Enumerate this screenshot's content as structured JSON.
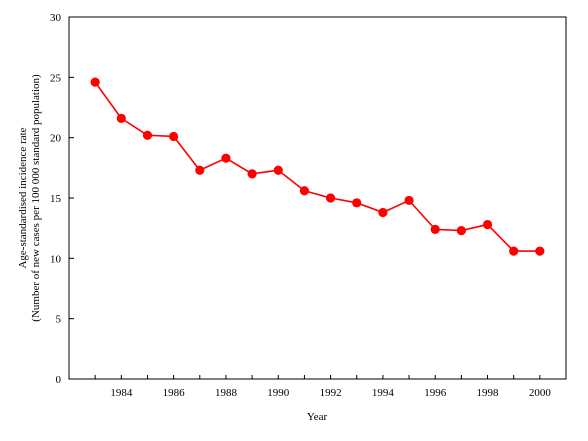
{
  "chart_data": {
    "type": "line",
    "xlabel": "Year",
    "ylabel_line1": "Age-standardised incidence rate",
    "ylabel_line2": "(Number of new cases per 100 000 standard population)",
    "xlim": [
      1982,
      2001
    ],
    "ylim": [
      0,
      30
    ],
    "x_ticks": [
      1984,
      1986,
      1988,
      1990,
      1992,
      1994,
      1996,
      1998,
      2000
    ],
    "y_ticks": [
      0,
      5,
      10,
      15,
      20,
      25,
      30
    ],
    "grid": false,
    "color": "#ff0000",
    "series": [
      {
        "x": [
          1983,
          1984,
          1985,
          1986,
          1987,
          1988,
          1989,
          1990,
          1991,
          1992,
          1993,
          1994,
          1995,
          1996,
          1997,
          1998,
          1999,
          2000
        ],
        "values": [
          24.6,
          21.6,
          20.2,
          20.1,
          17.3,
          18.3,
          17.0,
          17.3,
          15.6,
          15.0,
          14.6,
          13.8,
          14.8,
          12.4,
          12.3,
          12.8,
          10.6,
          10.6
        ]
      }
    ]
  }
}
